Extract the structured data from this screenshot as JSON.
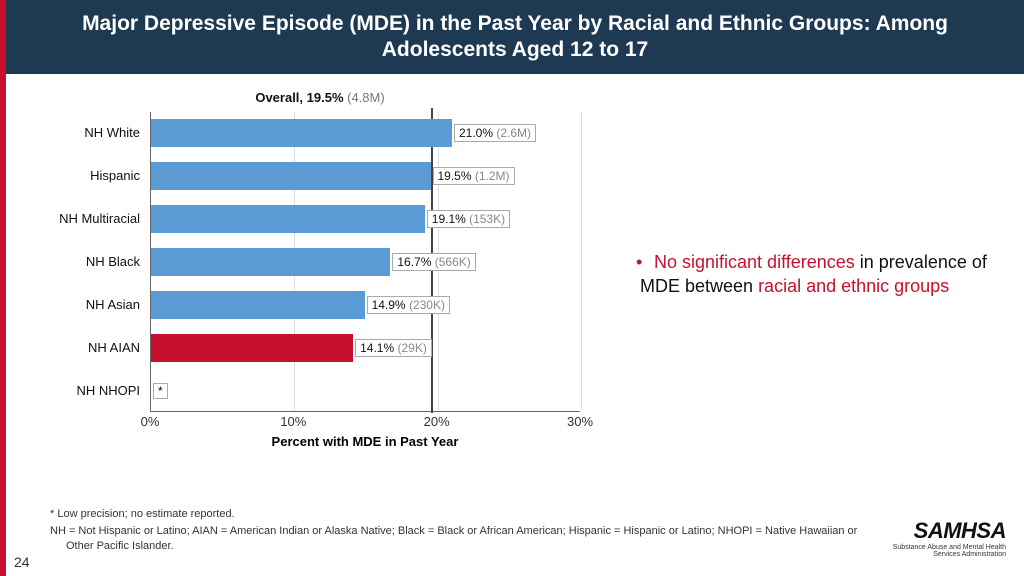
{
  "header": {
    "title": "Major Depressive Episode (MDE) in the Past Year by Racial and Ethnic Groups: Among Adolescents Aged 12 to 17"
  },
  "chart": {
    "type": "bar-horizontal",
    "overall_label_bold": "Overall, 19.5%",
    "overall_label_gray": " (4.8M)",
    "overall_value": 19.5,
    "xlim": [
      0,
      30
    ],
    "xtick_step": 10,
    "xticks": [
      "0%",
      "10%",
      "20%",
      "30%"
    ],
    "x_title": "Percent with MDE in Past Year",
    "bar_default_color": "#5b9bd5",
    "bar_highlight_color": "#c8102e",
    "grid_color": "#dddddd",
    "categories": [
      {
        "label": "NH White",
        "value": 21.0,
        "pct": "21.0%",
        "count": "(2.6M)",
        "highlight": false
      },
      {
        "label": "Hispanic",
        "value": 19.5,
        "pct": "19.5%",
        "count": "(1.2M)",
        "highlight": false
      },
      {
        "label": "NH Multiracial",
        "value": 19.1,
        "pct": "19.1%",
        "count": "(153K)",
        "highlight": false
      },
      {
        "label": "NH Black",
        "value": 16.7,
        "pct": "16.7%",
        "count": "(566K)",
        "highlight": false
      },
      {
        "label": "NH Asian",
        "value": 14.9,
        "pct": "14.9%",
        "count": "(230K)",
        "highlight": false
      },
      {
        "label": "NH AIAN",
        "value": 14.1,
        "pct": "14.1%",
        "count": "(29K)",
        "highlight": true
      },
      {
        "label": "NH NHOPI",
        "value": null,
        "star": "*",
        "highlight": false
      }
    ]
  },
  "bullet": {
    "parts": [
      {
        "text": "No significant differences",
        "red": true
      },
      {
        "text": " in prevalence of MDE between ",
        "red": false
      },
      {
        "text": "racial and ethnic groups",
        "red": true
      }
    ]
  },
  "footnotes": {
    "line1": "* Low precision; no estimate reported.",
    "line2": "NH = Not Hispanic or Latino; AIAN = American Indian or Alaska Native; Black = Black or African American; Hispanic = Hispanic or Latino; NHOPI = Native Hawaiian or Other Pacific Islander."
  },
  "page_number": "24",
  "logo": {
    "name": "SAMHSA",
    "sub1": "Substance Abuse and Mental Health",
    "sub2": "Services Administration"
  }
}
